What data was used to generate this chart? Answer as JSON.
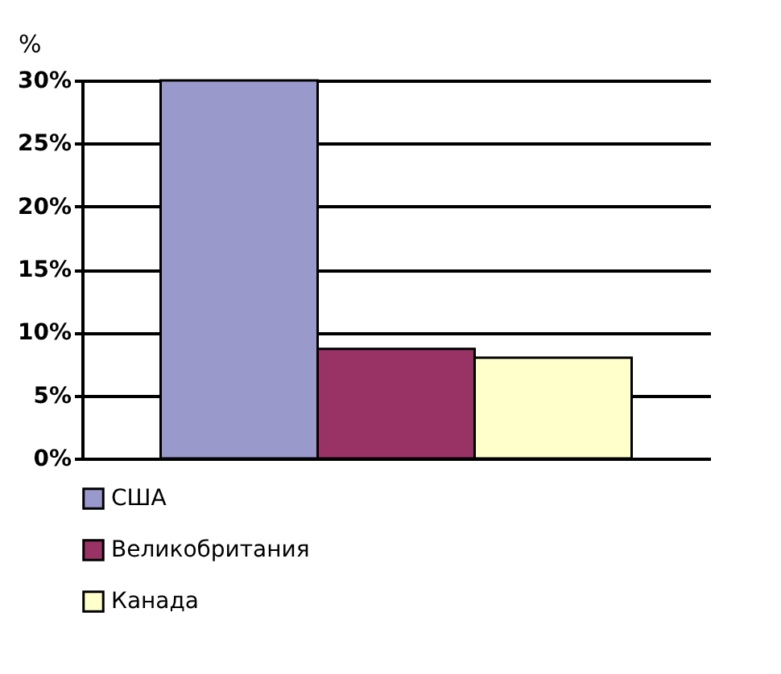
{
  "chart_data": {
    "type": "bar",
    "ylabel": "%",
    "categories": [
      null
    ],
    "series": [
      {
        "name": "США",
        "color": "#9999cc",
        "values": [
          30
        ]
      },
      {
        "name": "Великобритания",
        "color": "#993366",
        "values": [
          8.7
        ]
      },
      {
        "name": "Канада",
        "color": "#ffffcc",
        "values": [
          8
        ]
      }
    ],
    "ylim": [
      0,
      30
    ],
    "yticks": [
      {
        "value": 0,
        "label": "0%"
      },
      {
        "value": 5,
        "label": "5%"
      },
      {
        "value": 10,
        "label": "10%"
      },
      {
        "value": 15,
        "label": "15%"
      },
      {
        "value": 20,
        "label": "20%"
      },
      {
        "value": 25,
        "label": "25%"
      },
      {
        "value": 30,
        "label": "30%"
      }
    ],
    "grid": "y",
    "legend": "bottom"
  }
}
